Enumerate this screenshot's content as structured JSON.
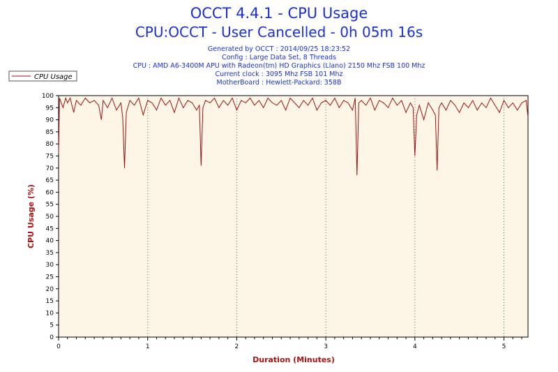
{
  "chart_data": {
    "type": "line",
    "title": "OCCT 4.4.1 - CPU Usage",
    "subtitle": "CPU:OCCT - User Cancelled - 0h 05m 16s",
    "info_lines": [
      "Generated by OCCT : 2014/09/25 18:23:52",
      "Config : Large Data Set, 8 Threads",
      "CPU : AMD A6-3400M APU with Radeon(tm) HD Graphics (Llano) 2150 Mhz FSB 100 Mhz",
      "Current clock : 3095 Mhz FSB 101 Mhz",
      "MotherBoard : Hewlett-Packard: 358B"
    ],
    "xlabel": "Duration (Minutes)",
    "ylabel": "CPU Usage (%)",
    "xlim": [
      0,
      5.27
    ],
    "ylim": [
      0,
      100
    ],
    "x_ticks": [
      "0",
      "1",
      "2",
      "3",
      "4",
      "5"
    ],
    "y_ticks": [
      "0",
      "5",
      "10",
      "15",
      "20",
      "25",
      "30",
      "35",
      "40",
      "45",
      "50",
      "55",
      "60",
      "65",
      "70",
      "75",
      "80",
      "85",
      "90",
      "95",
      "100"
    ],
    "grid": "vertical dotted at major x ticks",
    "legend": {
      "position": "top-left",
      "entries": [
        "CPU Usage"
      ]
    },
    "series": [
      {
        "name": "CPU Usage",
        "color": "#a01010",
        "x": [
          0,
          0.01,
          0.02,
          0.03,
          0.05,
          0.08,
          0.1,
          0.13,
          0.17,
          0.2,
          0.25,
          0.3,
          0.35,
          0.4,
          0.45,
          0.48,
          0.5,
          0.55,
          0.6,
          0.65,
          0.7,
          0.72,
          0.74,
          0.76,
          0.8,
          0.85,
          0.9,
          0.95,
          1.0,
          1.05,
          1.1,
          1.15,
          1.2,
          1.25,
          1.3,
          1.35,
          1.4,
          1.45,
          1.5,
          1.55,
          1.58,
          1.6,
          1.62,
          1.65,
          1.7,
          1.75,
          1.8,
          1.85,
          1.9,
          1.95,
          2.0,
          2.05,
          2.1,
          2.15,
          2.2,
          2.25,
          2.3,
          2.35,
          2.4,
          2.45,
          2.5,
          2.55,
          2.6,
          2.65,
          2.7,
          2.75,
          2.8,
          2.85,
          2.9,
          2.95,
          3.0,
          3.05,
          3.1,
          3.15,
          3.2,
          3.25,
          3.3,
          3.33,
          3.35,
          3.37,
          3.4,
          3.45,
          3.5,
          3.55,
          3.6,
          3.65,
          3.7,
          3.75,
          3.8,
          3.85,
          3.9,
          3.95,
          3.98,
          4.0,
          4.02,
          4.05,
          4.1,
          4.15,
          4.2,
          4.23,
          4.25,
          4.27,
          4.3,
          4.35,
          4.4,
          4.45,
          4.5,
          4.55,
          4.6,
          4.65,
          4.7,
          4.75,
          4.8,
          4.85,
          4.9,
          4.95,
          5.0,
          5.05,
          5.1,
          5.15,
          5.2,
          5.25,
          5.27
        ],
        "values": [
          76,
          99,
          98,
          97,
          95,
          99,
          97,
          99,
          93,
          98,
          96,
          99,
          97,
          98,
          96,
          90,
          98,
          95,
          99,
          94,
          97,
          91,
          70,
          93,
          98,
          96,
          99,
          92,
          98,
          97,
          94,
          99,
          96,
          98,
          93,
          99,
          95,
          98,
          97,
          94,
          96,
          71,
          95,
          98,
          97,
          99,
          95,
          98,
          96,
          99,
          94,
          98,
          97,
          99,
          96,
          98,
          95,
          99,
          97,
          96,
          98,
          94,
          99,
          97,
          95,
          98,
          96,
          99,
          94,
          97,
          98,
          96,
          99,
          95,
          98,
          97,
          94,
          99,
          67,
          97,
          98,
          96,
          99,
          94,
          98,
          97,
          95,
          99,
          96,
          98,
          93,
          97,
          95,
          75,
          92,
          96,
          90,
          97,
          94,
          92,
          69,
          95,
          97,
          94,
          98,
          96,
          93,
          97,
          95,
          98,
          94,
          97,
          95,
          99,
          96,
          93,
          98,
          95,
          97,
          94,
          97,
          98,
          91
        ]
      }
    ]
  }
}
